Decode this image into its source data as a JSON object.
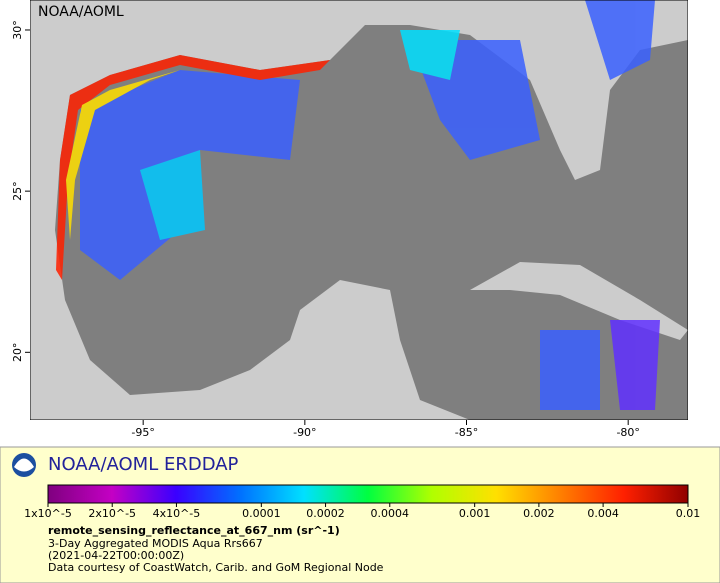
{
  "map": {
    "label": "NOAA/AOML",
    "xlim": [
      -98.5,
      -78.15
    ],
    "ylim": [
      17.9,
      30.93
    ],
    "xticks": [
      {
        "value": -95,
        "label": "-95°"
      },
      {
        "value": -90,
        "label": "-90°"
      },
      {
        "value": -85,
        "label": "-85°"
      },
      {
        "value": -80,
        "label": "-80°"
      }
    ],
    "yticks": [
      {
        "value": 20,
        "label": "20°"
      },
      {
        "value": 25,
        "label": "25°"
      },
      {
        "value": 30,
        "label": "30°"
      }
    ]
  },
  "legend": {
    "title": "NOAA/AOML ERDDAP",
    "colorbar": {
      "log_scale": true,
      "lim": [
        1e-05,
        0.01
      ],
      "colors": [
        "#7f007f",
        "#c400c4",
        "#3a00ff",
        "#0070ff",
        "#00e0ff",
        "#00ff40",
        "#b0ff00",
        "#ffe000",
        "#ff8000",
        "#ff2000",
        "#900000"
      ],
      "ticks": [
        {
          "value": 1e-05,
          "label": "1x10^-5"
        },
        {
          "value": 2e-05,
          "label": "2x10^-5"
        },
        {
          "value": 4e-05,
          "label": "4x10^-5"
        },
        0.0001,
        0.0002,
        0.0004,
        0.001,
        0.002,
        0.004,
        0.01
      ]
    },
    "variable": "remote_sensing_reflectance_at_667_nm (sr^-1)",
    "lines": [
      "3-Day Aggregated MODIS Aqua Rrs667",
      "(2021-04-22T00:00:00Z)",
      "Data courtesy of CoastWatch, Carib. and GoM Regional Node"
    ]
  }
}
